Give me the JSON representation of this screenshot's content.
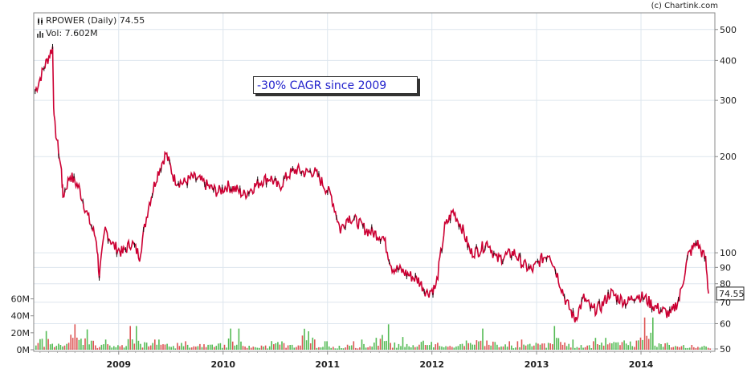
{
  "credit": "(c) Chartink.com",
  "header": {
    "price_label": "RPOWER (Daily) 74.55",
    "volume_label": "Vol: 7.602M"
  },
  "annotation": "-30% CAGR since 2009",
  "last_price_tag": "74.55",
  "colors": {
    "down": "#cc0033",
    "up": "#111111",
    "volume_up": "#55bb55",
    "volume_down": "#dd5555",
    "grid": "#dde6ee",
    "annotation_text": "#2222cc"
  },
  "chart_data": {
    "type": "line",
    "title": "RPOWER (Daily)",
    "scale": "log",
    "y_ticks_right": [
      50,
      60,
      70,
      80,
      90,
      100,
      200,
      300,
      400,
      500
    ],
    "volume_ticks_left": [
      "0M",
      "20M",
      "40M",
      "60M"
    ],
    "x_ticks": [
      "2009",
      "2010",
      "2011",
      "2012",
      "2013",
      "2014"
    ],
    "x_range": [
      "2008-03",
      "2014-09"
    ],
    "ylim": [
      50,
      520
    ],
    "series": [
      {
        "name": "RPOWER",
        "x": [
          "2008-03",
          "2008-04",
          "2008-05",
          "2008-05-20",
          "2008-06",
          "2008-06-20",
          "2008-07",
          "2008-08",
          "2008-09",
          "2008-10",
          "2008-10-25",
          "2008-11",
          "2008-12",
          "2009-01",
          "2009-02",
          "2009-03",
          "2009-04",
          "2009-05",
          "2009-06",
          "2009-07",
          "2009-08",
          "2009-09",
          "2009-10",
          "2009-11",
          "2009-12",
          "2010-01",
          "2010-02",
          "2010-03",
          "2010-04",
          "2010-05",
          "2010-06",
          "2010-07",
          "2010-08",
          "2010-09",
          "2010-10",
          "2010-11",
          "2010-12",
          "2011-01",
          "2011-02",
          "2011-03",
          "2011-04",
          "2011-05",
          "2011-06",
          "2011-07",
          "2011-08",
          "2011-09",
          "2011-10",
          "2011-11",
          "2011-12",
          "2012-01",
          "2012-02",
          "2012-03",
          "2012-04",
          "2012-05",
          "2012-06",
          "2012-07",
          "2012-08",
          "2012-09",
          "2012-10",
          "2012-11",
          "2012-12",
          "2013-01",
          "2013-02",
          "2013-03",
          "2013-04",
          "2013-05",
          "2013-06",
          "2013-07",
          "2013-08",
          "2013-09",
          "2013-10",
          "2013-11",
          "2013-12",
          "2014-01",
          "2014-02",
          "2014-03",
          "2014-04",
          "2014-05",
          "2014-06",
          "2014-07",
          "2014-08",
          "2014-08-25"
        ],
        "values": [
          320,
          380,
          440,
          260,
          180,
          150,
          175,
          160,
          130,
          110,
          85,
          118,
          105,
          100,
          108,
          98,
          140,
          175,
          205,
          170,
          165,
          172,
          168,
          160,
          155,
          162,
          158,
          152,
          160,
          168,
          172,
          160,
          175,
          182,
          178,
          180,
          165,
          150,
          118,
          130,
          125,
          118,
          115,
          112,
          90,
          88,
          85,
          82,
          75,
          78,
          120,
          135,
          120,
          100,
          102,
          108,
          95,
          98,
          100,
          92,
          88,
          95,
          100,
          85,
          70,
          62,
          72,
          66,
          68,
          75,
          72,
          70,
          74,
          72,
          68,
          66,
          64,
          72,
          98,
          108,
          95,
          74.55
        ]
      }
    ],
    "volume_series": {
      "name": "Vol",
      "unit": "M",
      "peak_values": [
        22,
        18,
        30,
        24,
        12,
        10,
        28,
        15,
        12,
        8,
        10,
        12,
        14,
        25,
        8,
        10,
        18,
        12,
        42,
        10,
        8,
        10,
        12,
        30,
        15,
        12,
        18,
        14,
        12,
        20,
        25,
        18,
        10,
        12,
        15,
        28,
        12,
        10,
        14,
        16,
        22,
        38,
        15,
        10,
        12,
        8
      ]
    }
  }
}
